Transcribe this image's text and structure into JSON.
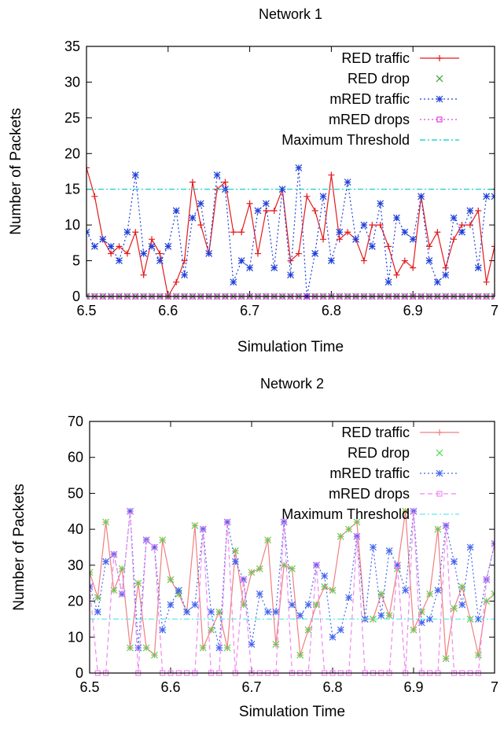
{
  "chart_data": [
    {
      "type": "line",
      "title": "Network 1",
      "xlabel": "Simulation Time",
      "ylabel": "Number of Packets",
      "xlim": [
        6.5,
        7
      ],
      "ylim": [
        0,
        35
      ],
      "xticks": [
        "6.5",
        "6.6",
        "6.7",
        "6.8",
        "6.9",
        "7"
      ],
      "yticks": [
        "0",
        "5",
        "10",
        "15",
        "20",
        "25",
        "30",
        "35"
      ],
      "legend_position": "top-right",
      "grid": false,
      "series": [
        {
          "name": "RED traffic",
          "color": "#e41a1c",
          "marker": "plus",
          "linestyle": "solid",
          "x": [
            6.5,
            6.51,
            6.52,
            6.53,
            6.54,
            6.55,
            6.56,
            6.57,
            6.58,
            6.59,
            6.6,
            6.61,
            6.62,
            6.63,
            6.64,
            6.65,
            6.66,
            6.67,
            6.68,
            6.69,
            6.7,
            6.71,
            6.72,
            6.73,
            6.74,
            6.75,
            6.76,
            6.77,
            6.78,
            6.79,
            6.8,
            6.81,
            6.82,
            6.83,
            6.84,
            6.85,
            6.86,
            6.87,
            6.88,
            6.89,
            6.9,
            6.91,
            6.92,
            6.93,
            6.94,
            6.95,
            6.96,
            6.97,
            6.98,
            6.99,
            7.0
          ],
          "y": [
            18,
            14,
            8,
            6,
            7,
            6,
            9,
            3,
            8,
            6,
            0,
            2,
            5,
            16,
            10,
            6,
            15,
            16,
            9,
            9,
            13,
            6,
            12,
            12,
            15,
            5,
            6,
            14,
            12,
            8,
            17,
            8,
            9,
            8,
            5,
            10,
            10,
            7,
            3,
            5,
            4,
            14,
            7,
            9,
            4,
            8,
            10,
            10,
            12,
            2,
            7
          ]
        },
        {
          "name": "RED drop",
          "color": "#2ca02c",
          "marker": "x",
          "linestyle": "none",
          "x": [
            6.5,
            6.51,
            6.52,
            6.53,
            6.54,
            6.55,
            6.56,
            6.57,
            6.58,
            6.59,
            6.6,
            6.61,
            6.62,
            6.63,
            6.64,
            6.65,
            6.66,
            6.67,
            6.68,
            6.69,
            6.7,
            6.71,
            6.72,
            6.73,
            6.74,
            6.75,
            6.76,
            6.77,
            6.78,
            6.79,
            6.8,
            6.81,
            6.82,
            6.83,
            6.84,
            6.85,
            6.86,
            6.87,
            6.88,
            6.89,
            6.9,
            6.91,
            6.92,
            6.93,
            6.94,
            6.95,
            6.96,
            6.97,
            6.98,
            6.99,
            7.0
          ],
          "y": [
            0,
            0,
            0,
            0,
            0,
            0,
            0,
            0,
            0,
            0,
            0,
            0,
            0,
            0,
            0,
            0,
            0,
            0,
            0,
            0,
            0,
            0,
            0,
            0,
            0,
            0,
            0,
            0,
            0,
            0,
            0,
            0,
            0,
            0,
            0,
            0,
            0,
            0,
            0,
            0,
            0,
            0,
            0,
            0,
            0,
            0,
            0,
            0,
            0,
            0,
            0
          ]
        },
        {
          "name": "mRED traffic",
          "color": "#1f3fd8",
          "marker": "star",
          "linestyle": "dotted",
          "x": [
            6.5,
            6.51,
            6.52,
            6.53,
            6.54,
            6.55,
            6.56,
            6.57,
            6.58,
            6.59,
            6.6,
            6.61,
            6.62,
            6.63,
            6.64,
            6.65,
            6.66,
            6.67,
            6.68,
            6.69,
            6.7,
            6.71,
            6.72,
            6.73,
            6.74,
            6.75,
            6.76,
            6.77,
            6.78,
            6.79,
            6.8,
            6.81,
            6.82,
            6.83,
            6.84,
            6.85,
            6.86,
            6.87,
            6.88,
            6.89,
            6.9,
            6.91,
            6.92,
            6.93,
            6.94,
            6.95,
            6.96,
            6.97,
            6.98,
            6.99,
            7.0
          ],
          "y": [
            9,
            7,
            8,
            7,
            5,
            9,
            17,
            6,
            7,
            5,
            7,
            12,
            3,
            11,
            13,
            6,
            17,
            15,
            2,
            5,
            4,
            12,
            13,
            4,
            15,
            3,
            18,
            0,
            6,
            14,
            5,
            9,
            16,
            8,
            10,
            7,
            13,
            2,
            11,
            9,
            8,
            14,
            5,
            2,
            3,
            11,
            9,
            12,
            4,
            14,
            14
          ]
        },
        {
          "name": "mRED drops",
          "color": "#e040e0",
          "marker": "square",
          "linestyle": "dotted",
          "x": [
            6.5,
            6.51,
            6.52,
            6.53,
            6.54,
            6.55,
            6.56,
            6.57,
            6.58,
            6.59,
            6.6,
            6.61,
            6.62,
            6.63,
            6.64,
            6.65,
            6.66,
            6.67,
            6.68,
            6.69,
            6.7,
            6.71,
            6.72,
            6.73,
            6.74,
            6.75,
            6.76,
            6.77,
            6.78,
            6.79,
            6.8,
            6.81,
            6.82,
            6.83,
            6.84,
            6.85,
            6.86,
            6.87,
            6.88,
            6.89,
            6.9,
            6.91,
            6.92,
            6.93,
            6.94,
            6.95,
            6.96,
            6.97,
            6.98,
            6.99,
            7.0
          ],
          "y": [
            0,
            0,
            0,
            0,
            0,
            0,
            0,
            0,
            0,
            0,
            0,
            0,
            0,
            0,
            0,
            0,
            0,
            0,
            0,
            0,
            0,
            0,
            0,
            0,
            0,
            0,
            0,
            0,
            0,
            0,
            0,
            0,
            0,
            0,
            0,
            0,
            0,
            0,
            0,
            0,
            0,
            0,
            0,
            0,
            0,
            0,
            0,
            0,
            0,
            0,
            0
          ]
        },
        {
          "name": "Maximum Threshold",
          "color": "#00cccc",
          "marker": "none",
          "linestyle": "dashdot",
          "x": [
            6.5,
            7.0
          ],
          "y": [
            15,
            15
          ]
        }
      ]
    },
    {
      "type": "line",
      "title": "Network 2",
      "xlabel": "Simulation Time",
      "ylabel": "Number of Packets",
      "xlim": [
        6.5,
        7
      ],
      "ylim": [
        0,
        70
      ],
      "xticks": [
        "6.5",
        "6.6",
        "6.7",
        "6.8",
        "6.9",
        "7"
      ],
      "yticks": [
        "0",
        "10",
        "20",
        "30",
        "40",
        "50",
        "60",
        "70"
      ],
      "legend_position": "top-right",
      "grid": false,
      "series": [
        {
          "name": "RED traffic",
          "color": "#f08080",
          "marker": "plus",
          "linestyle": "solid",
          "x": [
            6.5,
            6.51,
            6.52,
            6.53,
            6.54,
            6.55,
            6.56,
            6.57,
            6.58,
            6.59,
            6.6,
            6.61,
            6.62,
            6.63,
            6.64,
            6.65,
            6.66,
            6.67,
            6.68,
            6.69,
            6.7,
            6.71,
            6.72,
            6.73,
            6.74,
            6.75,
            6.76,
            6.77,
            6.78,
            6.79,
            6.8,
            6.81,
            6.82,
            6.83,
            6.84,
            6.85,
            6.86,
            6.87,
            6.88,
            6.89,
            6.9,
            6.91,
            6.92,
            6.93,
            6.94,
            6.95,
            6.96,
            6.97,
            6.98,
            6.99,
            7.0
          ],
          "y": [
            28,
            21,
            42,
            23,
            29,
            7,
            25,
            7,
            5,
            37,
            26,
            22,
            17,
            41,
            7,
            12,
            17,
            7,
            34,
            19,
            28,
            29,
            37,
            8,
            30,
            29,
            5,
            12,
            19,
            24,
            23,
            38,
            40,
            42,
            15,
            15,
            22,
            16,
            29,
            45,
            12,
            17,
            22,
            40,
            4,
            18,
            24,
            15,
            5,
            20,
            22
          ]
        },
        {
          "name": "RED drop",
          "color": "#44dd44",
          "marker": "x",
          "linestyle": "none",
          "x": [
            6.5,
            6.51,
            6.52,
            6.53,
            6.54,
            6.55,
            6.56,
            6.57,
            6.58,
            6.59,
            6.6,
            6.61,
            6.62,
            6.63,
            6.64,
            6.65,
            6.66,
            6.67,
            6.68,
            6.69,
            6.7,
            6.71,
            6.72,
            6.73,
            6.74,
            6.75,
            6.76,
            6.77,
            6.78,
            6.79,
            6.8,
            6.81,
            6.82,
            6.83,
            6.84,
            6.85,
            6.86,
            6.87,
            6.88,
            6.89,
            6.9,
            6.91,
            6.92,
            6.93,
            6.94,
            6.95,
            6.96,
            6.97,
            6.98,
            6.99,
            7.0
          ],
          "y": [
            28,
            21,
            42,
            23,
            29,
            7,
            25,
            7,
            5,
            37,
            26,
            22,
            17,
            41,
            7,
            12,
            17,
            7,
            34,
            19,
            28,
            29,
            37,
            8,
            30,
            29,
            5,
            12,
            19,
            24,
            23,
            38,
            40,
            42,
            15,
            15,
            22,
            16,
            29,
            45,
            12,
            17,
            22,
            40,
            4,
            18,
            24,
            15,
            5,
            20,
            22
          ]
        },
        {
          "name": "mRED traffic",
          "color": "#4466ee",
          "marker": "star",
          "linestyle": "dotted",
          "x": [
            6.5,
            6.51,
            6.52,
            6.53,
            6.54,
            6.55,
            6.56,
            6.57,
            6.58,
            6.59,
            6.6,
            6.61,
            6.62,
            6.63,
            6.64,
            6.65,
            6.66,
            6.67,
            6.68,
            6.69,
            6.7,
            6.71,
            6.72,
            6.73,
            6.74,
            6.75,
            6.76,
            6.77,
            6.78,
            6.79,
            6.8,
            6.81,
            6.82,
            6.83,
            6.84,
            6.85,
            6.86,
            6.87,
            6.88,
            6.89,
            6.9,
            6.91,
            6.92,
            6.93,
            6.94,
            6.95,
            6.96,
            6.97,
            6.98,
            6.99,
            7.0
          ],
          "y": [
            24,
            17,
            31,
            33,
            22,
            45,
            7,
            37,
            35,
            12,
            19,
            23,
            17,
            19,
            40,
            17,
            7,
            42,
            31,
            26,
            8,
            22,
            17,
            17,
            42,
            19,
            16,
            19,
            30,
            27,
            10,
            12,
            21,
            38,
            15,
            35,
            16,
            34,
            30,
            23,
            45,
            14,
            15,
            23,
            41,
            31,
            19,
            35,
            15,
            26,
            36
          ]
        },
        {
          "name": "mRED drops",
          "color": "#ee88ee",
          "marker": "square",
          "linestyle": "dashed",
          "x": [
            6.5,
            6.51,
            6.52,
            6.53,
            6.54,
            6.55,
            6.56,
            6.57,
            6.58,
            6.59,
            6.6,
            6.61,
            6.62,
            6.63,
            6.64,
            6.65,
            6.66,
            6.67,
            6.68,
            6.69,
            6.7,
            6.71,
            6.72,
            6.73,
            6.74,
            6.75,
            6.76,
            6.77,
            6.78,
            6.79,
            6.8,
            6.81,
            6.82,
            6.83,
            6.84,
            6.85,
            6.86,
            6.87,
            6.88,
            6.89,
            6.9,
            6.91,
            6.92,
            6.93,
            6.94,
            6.95,
            6.96,
            6.97,
            6.98,
            6.99,
            7.0
          ],
          "y": [
            24,
            0,
            0,
            33,
            22,
            45,
            0,
            37,
            35,
            0,
            0,
            0,
            0,
            0,
            40,
            0,
            0,
            42,
            0,
            26,
            0,
            0,
            0,
            0,
            42,
            0,
            0,
            0,
            30,
            0,
            0,
            0,
            0,
            38,
            0,
            0,
            0,
            0,
            30,
            0,
            45,
            0,
            0,
            0,
            41,
            0,
            0,
            0,
            0,
            26,
            36
          ]
        },
        {
          "name": "Maximum Threshold",
          "color": "#66e8e8",
          "marker": "none",
          "linestyle": "dashdot",
          "x": [
            6.5,
            7.0
          ],
          "y": [
            15,
            15
          ]
        }
      ]
    }
  ]
}
